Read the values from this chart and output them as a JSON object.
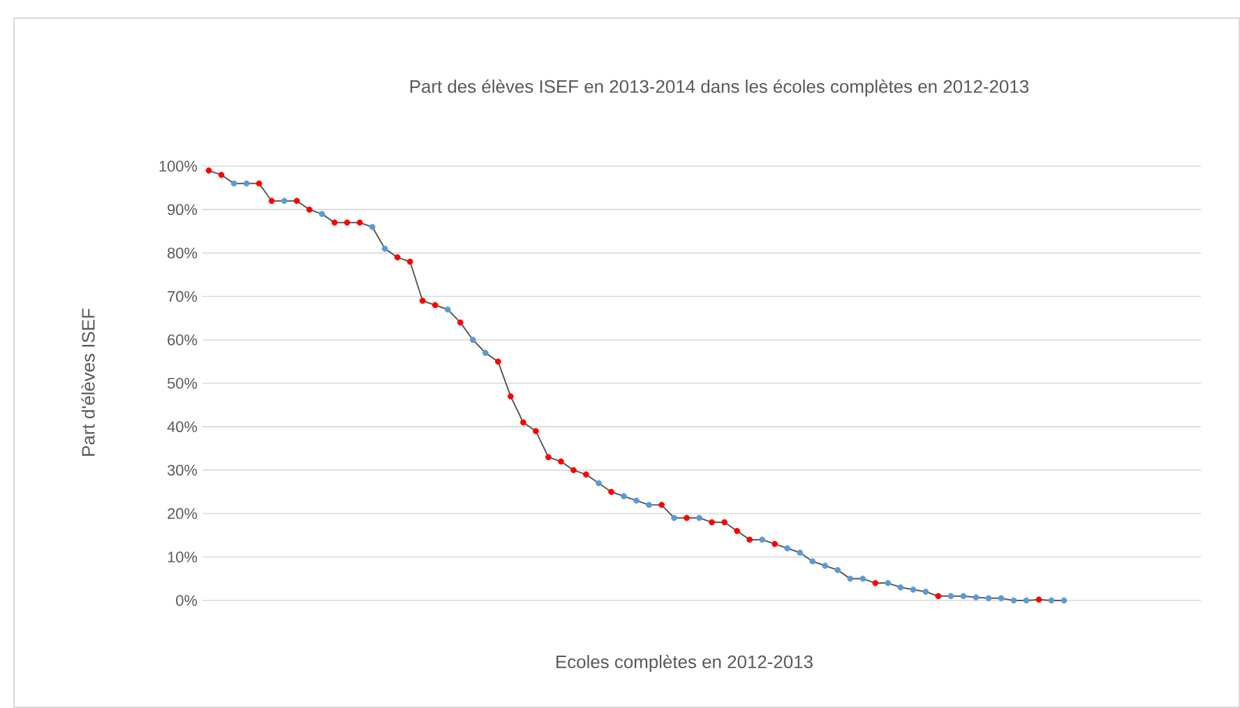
{
  "chart_data": {
    "type": "line",
    "title": "Part des élèves ISEF en 2013-2014 dans les écoles complètes en 2012-2013",
    "xlabel": "Ecoles complètes en 2012-2013",
    "ylabel": "Part d'élèves ISEF",
    "categories": [
      null,
      null,
      null,
      null,
      null,
      null,
      null,
      null,
      null,
      null,
      null,
      null,
      null,
      null,
      null,
      null,
      null,
      null,
      null,
      null,
      null,
      null,
      null,
      null,
      null,
      null,
      null,
      null,
      null,
      null,
      null,
      null,
      null,
      null,
      null,
      null,
      null,
      null,
      null,
      null,
      null,
      null,
      null,
      null,
      null,
      null,
      null,
      null,
      null,
      null,
      null,
      null,
      null,
      null,
      null,
      null,
      null,
      null,
      null,
      null,
      null,
      null,
      null,
      null,
      null,
      null,
      null,
      null,
      null
    ],
    "series": [
      {
        "color": "#595959",
        "values": [
          99,
          98,
          96,
          96,
          96,
          92,
          92,
          92,
          90,
          89,
          87,
          87,
          87,
          86,
          81,
          79,
          78,
          69,
          68,
          67,
          64,
          60,
          57,
          55,
          47,
          41,
          39,
          33,
          32,
          30,
          29,
          27,
          25,
          24,
          23,
          22,
          22,
          19,
          19,
          19,
          18,
          18,
          16,
          14,
          14,
          13,
          12,
          11,
          9,
          8,
          7,
          5,
          5,
          4,
          4,
          3,
          2.5,
          2,
          1,
          1,
          1,
          0.7,
          0.5,
          0.5,
          0,
          0,
          0.2,
          0,
          0
        ],
        "colors": [
          "#ff0000",
          "#ff0000",
          "#5b9bd5",
          "#5b9bd5",
          "#ff0000",
          "#ff0000",
          "#5b9bd5",
          "#ff0000",
          "#ff0000",
          "#5b9bd5",
          "#ff0000",
          "#ff0000",
          "#ff0000",
          "#5b9bd5",
          "#5b9bd5",
          "#ff0000",
          "#ff0000",
          "#ff0000",
          "#ff0000",
          "#5b9bd5",
          "#ff0000",
          "#5b9bd5",
          "#5b9bd5",
          "#ff0000",
          "#ff0000",
          "#ff0000",
          "#ff0000",
          "#ff0000",
          "#ff0000",
          "#ff0000",
          "#ff0000",
          "#5b9bd5",
          "#ff0000",
          "#5b9bd5",
          "#5b9bd5",
          "#5b9bd5",
          "#ff0000",
          "#5b9bd5",
          "#ff0000",
          "#5b9bd5",
          "#ff0000",
          "#ff0000",
          "#ff0000",
          "#ff0000",
          "#5b9bd5",
          "#ff0000",
          "#5b9bd5",
          "#5b9bd5",
          "#5b9bd5",
          "#5b9bd5",
          "#5b9bd5",
          "#5b9bd5",
          "#5b9bd5",
          "#ff0000",
          "#5b9bd5",
          "#5b9bd5",
          "#5b9bd5",
          "#5b9bd5",
          "#ff0000",
          "#5b9bd5",
          "#5b9bd5",
          "#5b9bd5",
          "#5b9bd5",
          "#5b9bd5",
          "#5b9bd5",
          "#5b9bd5",
          "#ff0000",
          "#5b9bd5",
          "#5b9bd5"
        ]
      }
    ],
    "ylim": [
      0,
      100
    ],
    "yticks": [
      {
        "value": 0,
        "label": "0%"
      },
      {
        "value": 10,
        "label": "10%"
      },
      {
        "value": 20,
        "label": "20%"
      },
      {
        "value": 30,
        "label": "30%"
      },
      {
        "value": 40,
        "label": "40%"
      },
      {
        "value": 50,
        "label": "50%"
      },
      {
        "value": 60,
        "label": "60%"
      },
      {
        "value": 70,
        "label": "70%"
      },
      {
        "value": 80,
        "label": "80%"
      },
      {
        "value": 90,
        "label": "90%"
      },
      {
        "value": 100,
        "label": "100%"
      }
    ],
    "grid": "y",
    "tick_labels": "y",
    "marker": "circle",
    "line_style": "solid"
  }
}
